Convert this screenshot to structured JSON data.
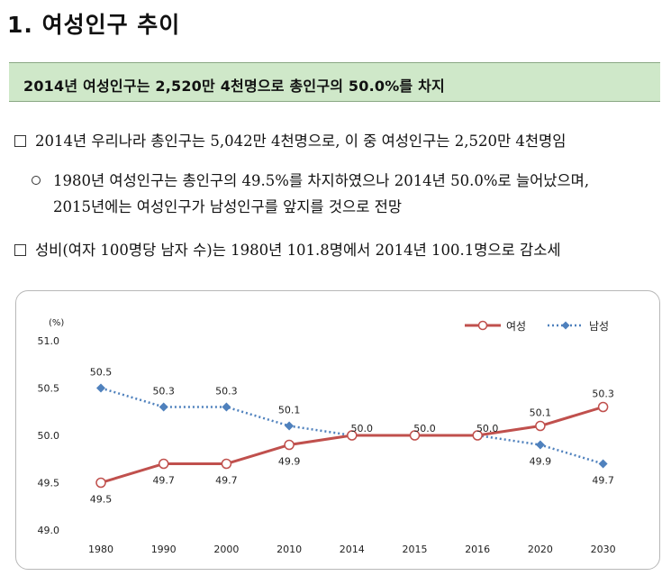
{
  "section": {
    "title": "1. 여성인구 추이"
  },
  "summary": {
    "text": "2014년 여성인구는 2,520만 4천명으로 총인구의 50.0%를 차지"
  },
  "bullets": {
    "b1": "2014년 우리나라 총인구는 5,042만 4천명으로, 이 중 여성인구는 2,520만 4천명임",
    "b2_line1": "1980년 여성인구는 총인구의 49.5%를 차지하였으나 2014년 50.0%로 늘어났으며,",
    "b2_line2": "2015년에는 여성인구가 남성인구를 앞지를 것으로 전망",
    "b3": "성비(여자 100명당 남자 수)는 1980년 101.8명에서 2014년 100.1명으로 감소세"
  },
  "chart_data": {
    "type": "line",
    "unit": "(%)",
    "categories": [
      "1980",
      "1990",
      "2000",
      "2010",
      "2014",
      "2015",
      "2016",
      "2020",
      "2030"
    ],
    "ylim": [
      49.0,
      51.0
    ],
    "yticks": [
      "51.0",
      "50.5",
      "50.0",
      "49.5",
      "49.0"
    ],
    "grid": false,
    "legend_position": "top-right",
    "series": [
      {
        "name": "여성",
        "color": "#c0504d",
        "values": [
          49.5,
          49.7,
          49.7,
          49.9,
          50.0,
          50.0,
          50.0,
          50.1,
          50.3
        ],
        "labels": [
          "49.5",
          "49.7",
          "49.7",
          "49.9",
          "50.0",
          "50.0",
          "50.0",
          "50.1",
          "50.3"
        ]
      },
      {
        "name": "남성",
        "color": "#4f81bd",
        "values": [
          50.5,
          50.3,
          50.3,
          50.1,
          50.0,
          50.0,
          50.0,
          49.9,
          49.7
        ],
        "labels": [
          "50.5",
          "50.3",
          "50.3",
          "50.1",
          "50.0",
          "50.0",
          "50.0",
          "49.9",
          "49.7"
        ]
      }
    ]
  }
}
